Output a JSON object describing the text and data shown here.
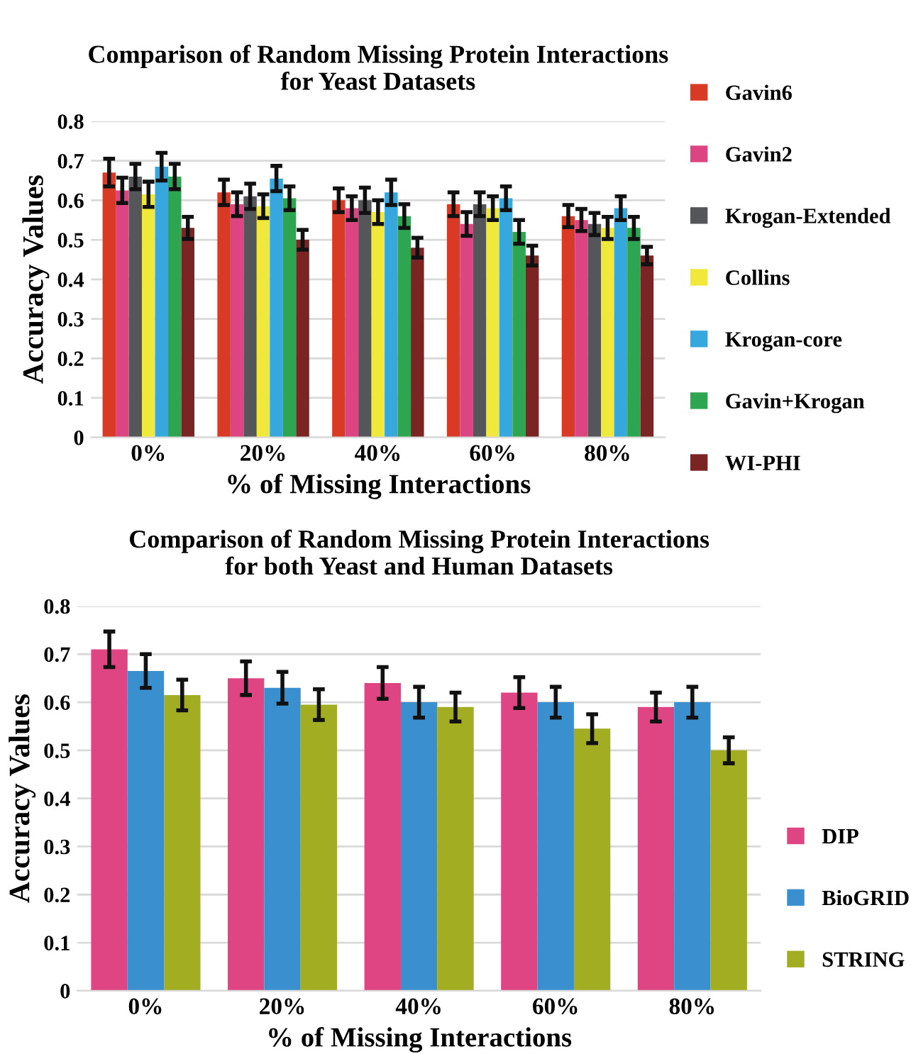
{
  "chart_data": [
    {
      "type": "bar",
      "title": "Comparison of Random Missing Protein Interactions\nfor Yeast Datasets",
      "xlabel": "% of Missing Interactions",
      "ylabel": "Accuracy Values",
      "categories": [
        "0%",
        "20%",
        "40%",
        "60%",
        "80%"
      ],
      "series": [
        {
          "name": "Gavin6",
          "color": "#d93a26",
          "values": [
            0.67,
            0.62,
            0.6,
            0.59,
            0.56
          ],
          "errors": [
            0.035,
            0.032,
            0.03,
            0.03,
            0.028
          ]
        },
        {
          "name": "Gavin2",
          "color": "#dc4582",
          "values": [
            0.625,
            0.59,
            0.58,
            0.54,
            0.55
          ],
          "errors": [
            0.032,
            0.03,
            0.03,
            0.03,
            0.028
          ]
        },
        {
          "name": "Krogan-Extended",
          "color": "#545659",
          "values": [
            0.66,
            0.61,
            0.6,
            0.59,
            0.54
          ],
          "errors": [
            0.032,
            0.032,
            0.032,
            0.03,
            0.028
          ]
        },
        {
          "name": "Collins",
          "color": "#f0e83a",
          "values": [
            0.615,
            0.585,
            0.57,
            0.58,
            0.53
          ],
          "errors": [
            0.032,
            0.03,
            0.03,
            0.03,
            0.028
          ]
        },
        {
          "name": "Krogan-core",
          "color": "#36a8dd",
          "values": [
            0.685,
            0.655,
            0.62,
            0.605,
            0.58
          ],
          "errors": [
            0.035,
            0.032,
            0.032,
            0.03,
            0.03
          ]
        },
        {
          "name": "Gavin+Krogan",
          "color": "#2ea550",
          "values": [
            0.66,
            0.605,
            0.56,
            0.52,
            0.53
          ],
          "errors": [
            0.032,
            0.03,
            0.03,
            0.03,
            0.028
          ]
        },
        {
          "name": "WI-PHI",
          "color": "#7a2424",
          "values": [
            0.53,
            0.5,
            0.48,
            0.46,
            0.46
          ],
          "errors": [
            0.028,
            0.025,
            0.025,
            0.025,
            0.022
          ]
        }
      ],
      "ylim": [
        0,
        0.8
      ],
      "yticks": [
        0,
        0.1,
        0.2,
        0.3,
        0.4,
        0.5,
        0.6,
        0.7,
        0.8
      ],
      "grid": "y",
      "legend": "right"
    },
    {
      "type": "bar",
      "title": "Comparison of Random Missing Protein Interactions\nfor both Yeast and Human Datasets",
      "xlabel": "% of Missing Interactions",
      "ylabel": "Accuracy Values",
      "categories": [
        "0%",
        "20%",
        "40%",
        "60%",
        "80%"
      ],
      "series": [
        {
          "name": "DIP",
          "color": "#de4582",
          "values": [
            0.71,
            0.65,
            0.64,
            0.62,
            0.59
          ],
          "errors": [
            0.037,
            0.035,
            0.033,
            0.032,
            0.03
          ]
        },
        {
          "name": "BioGRID",
          "color": "#3a8fcf",
          "values": [
            0.665,
            0.63,
            0.6,
            0.6,
            0.6
          ],
          "errors": [
            0.035,
            0.033,
            0.032,
            0.032,
            0.032
          ]
        },
        {
          "name": "STRING",
          "color": "#a3ad22",
          "values": [
            0.615,
            0.595,
            0.59,
            0.545,
            0.5
          ],
          "errors": [
            0.032,
            0.032,
            0.03,
            0.03,
            0.027
          ]
        }
      ],
      "ylim": [
        0,
        0.8
      ],
      "yticks": [
        0,
        0.1,
        0.2,
        0.3,
        0.4,
        0.5,
        0.6,
        0.7,
        0.8
      ],
      "grid": "y",
      "legend": "bottom right"
    }
  ]
}
